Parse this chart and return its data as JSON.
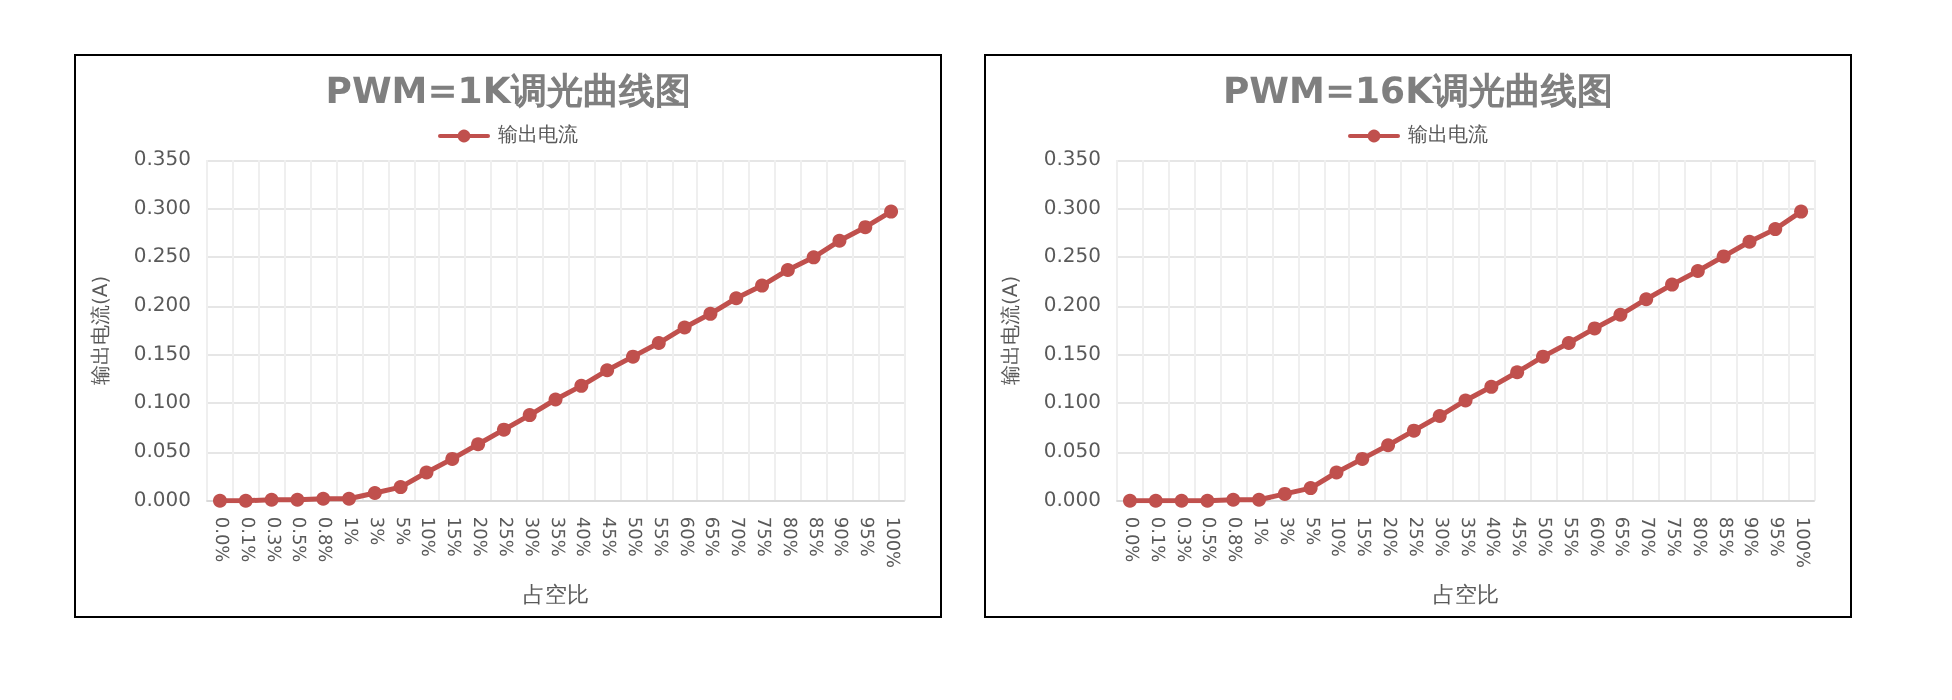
{
  "chart_data": [
    {
      "type": "line",
      "title": "PWM=1K调光曲线图",
      "xlabel": "占空比",
      "ylabel": "输出电流(A)",
      "categories": [
        "0.0%",
        "0.1%",
        "0.3%",
        "0.5%",
        "0.8%",
        "1%",
        "3%",
        "5%",
        "10%",
        "15%",
        "20%",
        "25%",
        "30%",
        "35%",
        "40%",
        "45%",
        "50%",
        "55%",
        "60%",
        "65%",
        "70%",
        "75%",
        "80%",
        "85%",
        "90%",
        "95%",
        "100%"
      ],
      "series": [
        {
          "name": "输出电流",
          "color": "#c0504d",
          "values": [
            0,
            0,
            0.001,
            0.001,
            0.002,
            0.002,
            0.008,
            0.014,
            0.029,
            0.043,
            0.058,
            0.073,
            0.088,
            0.104,
            0.118,
            0.134,
            0.148,
            0.162,
            0.178,
            0.192,
            0.208,
            0.221,
            0.237,
            0.25,
            0.267,
            0.281,
            0.297
          ]
        }
      ],
      "ylim": [
        0,
        0.35
      ],
      "yticks": [
        {
          "value": 0,
          "label": "0.000"
        },
        {
          "value": 0.05,
          "label": "0.050"
        },
        {
          "value": 0.1,
          "label": "0.100"
        },
        {
          "value": 0.15,
          "label": "0.150"
        },
        {
          "value": 0.2,
          "label": "0.200"
        },
        {
          "value": 0.25,
          "label": "0.250"
        },
        {
          "value": 0.3,
          "label": "0.300"
        },
        {
          "value": 0.35,
          "label": "0.350"
        }
      ],
      "grid": true,
      "legend": "top",
      "marker": "circle",
      "line_style": "solid"
    },
    {
      "type": "line",
      "title": "PWM=16K调光曲线图",
      "xlabel": "占空比",
      "ylabel": "输出电流(A)",
      "categories": [
        "0.0%",
        "0.1%",
        "0.3%",
        "0.5%",
        "0.8%",
        "1%",
        "3%",
        "5%",
        "10%",
        "15%",
        "20%",
        "25%",
        "30%",
        "35%",
        "40%",
        "45%",
        "50%",
        "55%",
        "60%",
        "65%",
        "70%",
        "75%",
        "80%",
        "85%",
        "90%",
        "95%",
        "100%"
      ],
      "series": [
        {
          "name": "输出电流",
          "color": "#c0504d",
          "values": [
            0,
            0,
            0,
            0,
            0.001,
            0.001,
            0.007,
            0.013,
            0.029,
            0.043,
            0.057,
            0.072,
            0.087,
            0.103,
            0.117,
            0.132,
            0.148,
            0.162,
            0.177,
            0.191,
            0.207,
            0.222,
            0.236,
            0.251,
            0.266,
            0.279,
            0.297
          ]
        }
      ],
      "ylim": [
        0,
        0.35
      ],
      "yticks": [
        {
          "value": 0,
          "label": "0.000"
        },
        {
          "value": 0.05,
          "label": "0.050"
        },
        {
          "value": 0.1,
          "label": "0.100"
        },
        {
          "value": 0.15,
          "label": "0.150"
        },
        {
          "value": 0.2,
          "label": "0.200"
        },
        {
          "value": 0.25,
          "label": "0.250"
        },
        {
          "value": 0.3,
          "label": "0.300"
        },
        {
          "value": 0.35,
          "label": "0.350"
        }
      ],
      "grid": true,
      "legend": "top",
      "marker": "circle",
      "line_style": "solid"
    }
  ]
}
